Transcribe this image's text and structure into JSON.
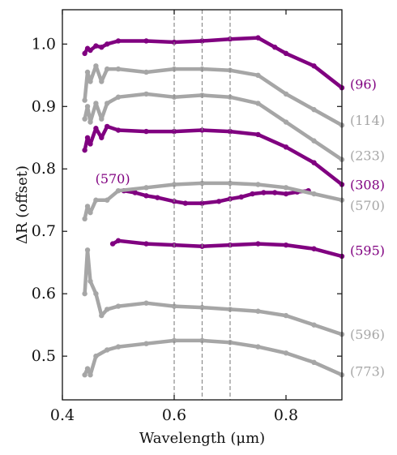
{
  "chart_data": {
    "type": "scatter",
    "xlabel": "Wavelength (μm)",
    "ylabel": "ΔR (offset)",
    "xlim": [
      0.4,
      0.9
    ],
    "ylim": [
      0.43,
      1.055
    ],
    "xticks": [
      0.4,
      0.6,
      0.8
    ],
    "xtick_labels": [
      "0.4",
      "0.6",
      "0.8"
    ],
    "yticks": [
      0.5,
      0.6,
      0.7,
      0.8,
      0.9,
      1.0
    ],
    "ytick_labels": [
      "0.5",
      "0.6",
      "0.7",
      "0.8",
      "0.9",
      "1.0"
    ],
    "vlines": [
      0.6,
      0.65,
      0.7
    ],
    "grid": false,
    "colors": {
      "highlight": "#800080",
      "muted": "#a6a6a6",
      "vline": "#8c8c8c"
    },
    "series": [
      {
        "name": "(96)",
        "color": "#800080",
        "label_y": 0.936,
        "x": [
          0.44,
          0.445,
          0.45,
          0.46,
          0.47,
          0.48,
          0.5,
          0.55,
          0.6,
          0.65,
          0.7,
          0.75,
          0.78,
          0.8,
          0.85,
          0.9
        ],
        "y": [
          0.985,
          0.993,
          0.99,
          0.997,
          0.995,
          1.0,
          1.005,
          1.005,
          1.003,
          1.005,
          1.008,
          1.01,
          0.995,
          0.985,
          0.965,
          0.93
        ]
      },
      {
        "name": "(114)",
        "color": "#a6a6a6",
        "label_y": 0.878,
        "x": [
          0.44,
          0.445,
          0.45,
          0.46,
          0.47,
          0.48,
          0.5,
          0.55,
          0.6,
          0.65,
          0.7,
          0.75,
          0.8,
          0.85,
          0.9
        ],
        "y": [
          0.91,
          0.955,
          0.94,
          0.965,
          0.94,
          0.96,
          0.96,
          0.955,
          0.96,
          0.96,
          0.958,
          0.95,
          0.92,
          0.895,
          0.87
        ]
      },
      {
        "name": "(233)",
        "color": "#a6a6a6",
        "label_y": 0.822,
        "x": [
          0.44,
          0.445,
          0.45,
          0.46,
          0.47,
          0.48,
          0.5,
          0.55,
          0.6,
          0.65,
          0.7,
          0.75,
          0.8,
          0.85,
          0.9
        ],
        "y": [
          0.88,
          0.9,
          0.875,
          0.905,
          0.88,
          0.905,
          0.915,
          0.92,
          0.915,
          0.918,
          0.915,
          0.905,
          0.875,
          0.845,
          0.815
        ]
      },
      {
        "name": "(308)",
        "color": "#800080",
        "label_y": 0.775,
        "x": [
          0.44,
          0.445,
          0.45,
          0.46,
          0.47,
          0.48,
          0.5,
          0.55,
          0.6,
          0.65,
          0.7,
          0.75,
          0.8,
          0.85,
          0.9
        ],
        "y": [
          0.83,
          0.85,
          0.84,
          0.865,
          0.85,
          0.868,
          0.862,
          0.86,
          0.86,
          0.862,
          0.86,
          0.855,
          0.835,
          0.81,
          0.775
        ]
      },
      {
        "name": "(570)",
        "color": "#800080",
        "label_y": null,
        "x": [
          0.51,
          0.53,
          0.55,
          0.57,
          0.6,
          0.62,
          0.65,
          0.68,
          0.7,
          0.72,
          0.74,
          0.76,
          0.78,
          0.8,
          0.82,
          0.84
        ],
        "y": [
          0.765,
          0.762,
          0.757,
          0.754,
          0.748,
          0.745,
          0.745,
          0.748,
          0.752,
          0.755,
          0.76,
          0.762,
          0.762,
          0.76,
          0.763,
          0.765
        ]
      },
      {
        "name": "(570)",
        "color": "#a6a6a6",
        "label_y": 0.742,
        "x": [
          0.44,
          0.445,
          0.45,
          0.46,
          0.48,
          0.5,
          0.55,
          0.6,
          0.65,
          0.7,
          0.75,
          0.8,
          0.85,
          0.9
        ],
        "y": [
          0.72,
          0.74,
          0.73,
          0.75,
          0.75,
          0.765,
          0.77,
          0.775,
          0.777,
          0.777,
          0.775,
          0.77,
          0.76,
          0.75
        ]
      },
      {
        "name": "(595)",
        "color": "#800080",
        "label_y": 0.67,
        "x": [
          0.49,
          0.5,
          0.55,
          0.6,
          0.65,
          0.7,
          0.75,
          0.8,
          0.85,
          0.9
        ],
        "y": [
          0.68,
          0.685,
          0.68,
          0.678,
          0.676,
          0.678,
          0.68,
          0.678,
          0.672,
          0.66
        ]
      },
      {
        "name": "(596)",
        "color": "#a6a6a6",
        "label_y": 0.535,
        "x": [
          0.44,
          0.445,
          0.45,
          0.46,
          0.47,
          0.48,
          0.5,
          0.55,
          0.6,
          0.65,
          0.7,
          0.75,
          0.8,
          0.85,
          0.9
        ],
        "y": [
          0.6,
          0.67,
          0.62,
          0.6,
          0.565,
          0.575,
          0.58,
          0.585,
          0.58,
          0.578,
          0.575,
          0.572,
          0.565,
          0.55,
          0.535
        ]
      },
      {
        "name": "(773)",
        "color": "#a6a6a6",
        "label_y": 0.476,
        "x": [
          0.44,
          0.445,
          0.45,
          0.46,
          0.48,
          0.5,
          0.55,
          0.6,
          0.65,
          0.7,
          0.75,
          0.8,
          0.85,
          0.9
        ],
        "y": [
          0.47,
          0.48,
          0.47,
          0.5,
          0.51,
          0.515,
          0.52,
          0.525,
          0.525,
          0.522,
          0.515,
          0.505,
          0.49,
          0.47
        ]
      }
    ],
    "annotations": [
      {
        "text": "(570)",
        "color": "#800080",
        "x": 0.49,
        "y": 0.785
      }
    ]
  }
}
